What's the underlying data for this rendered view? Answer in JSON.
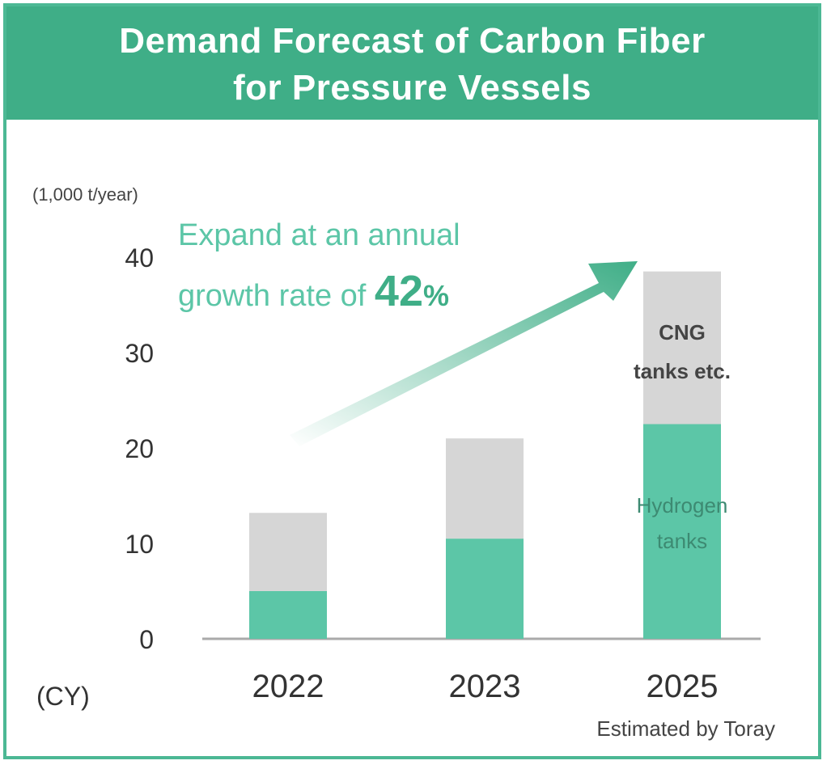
{
  "chart_data": {
    "type": "bar",
    "stacked": true,
    "title_lines": [
      "Demand Forecast of Carbon Fiber",
      "for Pressure Vessels"
    ],
    "y_unit": "(1,000 t/year)",
    "x_unit": "(CY)",
    "categories": [
      "2022",
      "2023",
      "2025"
    ],
    "series": [
      {
        "name": "Hydrogen tanks",
        "label_lines": [
          "Hydrogen",
          "tanks"
        ],
        "color": "#5cc6a7",
        "values": [
          5,
          10.5,
          22.5
        ]
      },
      {
        "name": "CNG tanks etc.",
        "label_lines": [
          "CNG",
          "tanks etc."
        ],
        "color": "#d6d6d6",
        "values": [
          8.2,
          10.5,
          16
        ]
      }
    ],
    "ylim": [
      0,
      40
    ],
    "yticks": [
      0,
      10,
      20,
      30,
      40
    ],
    "annotation": {
      "text_line1": "Expand at an annual",
      "text_line2_prefix": "growth rate of ",
      "highlight": "42",
      "suffix": "%"
    },
    "source": "Estimated by Toray",
    "colors": {
      "accent": "#3fae87",
      "text_accent": "#5cc6a7",
      "axis": "#aaaaaa",
      "frame": "#4cb894"
    }
  }
}
